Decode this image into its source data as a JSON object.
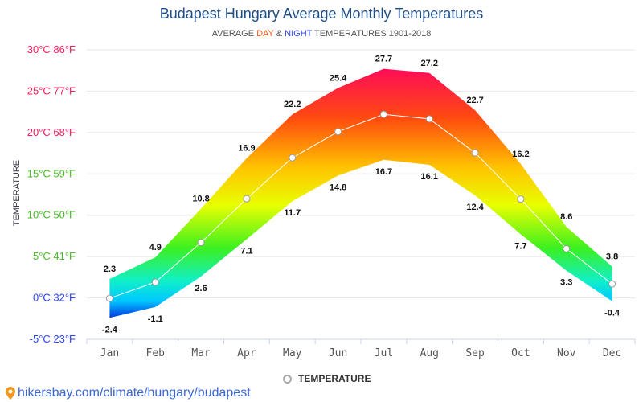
{
  "chart_data": {
    "type": "area",
    "title": "Budapest Hungary Average Monthly Temperatures",
    "subtitle": {
      "prefix": "AVERAGE ",
      "day": "DAY",
      "amp": " & ",
      "night": "NIGHT",
      "suffix": " TEMPERATURES 1901-2018"
    },
    "ylabel": "TEMPERATURE",
    "xlabel": "",
    "ylim": [
      -5,
      30
    ],
    "y_ticks": [
      {
        "value": 30,
        "label": "30°C 86°F",
        "color": "#ff1a5a"
      },
      {
        "value": 25,
        "label": "25°C 77°F",
        "color": "#ff1a5a"
      },
      {
        "value": 20,
        "label": "20°C 68°F",
        "color": "#ff1a5a"
      },
      {
        "value": 15,
        "label": "15°C 59°F",
        "color": "#44c020"
      },
      {
        "value": 10,
        "label": "10°C 50°F",
        "color": "#44c020"
      },
      {
        "value": 5,
        "label": "5°C 41°F",
        "color": "#44c020"
      },
      {
        "value": 0,
        "label": "0°C 32°F",
        "color": "#2a45ff"
      },
      {
        "value": -5,
        "label": "-5°C 23°F",
        "color": "#2a45ff"
      }
    ],
    "categories": [
      "Jan",
      "Feb",
      "Mar",
      "Apr",
      "May",
      "Jun",
      "Jul",
      "Aug",
      "Sep",
      "Oct",
      "Nov",
      "Dec"
    ],
    "series": [
      {
        "name": "Day",
        "values": [
          2.3,
          4.9,
          10.8,
          16.9,
          22.2,
          25.4,
          27.7,
          27.2,
          22.7,
          16.2,
          8.6,
          3.8
        ]
      },
      {
        "name": "Night",
        "values": [
          -2.4,
          -1.1,
          2.6,
          7.1,
          11.7,
          14.8,
          16.7,
          16.1,
          12.4,
          7.7,
          3.3,
          -0.4
        ]
      },
      {
        "name": "TEMPERATURE",
        "values": [
          -0.05,
          1.9,
          6.7,
          12.0,
          16.95,
          20.1,
          22.2,
          21.65,
          17.55,
          11.95,
          5.95,
          1.7
        ]
      }
    ],
    "grid": true,
    "legend": {
      "position": "bottom-center",
      "label": "TEMPERATURE"
    }
  },
  "source": "hikersbay.com/climate/hungary/budapest"
}
